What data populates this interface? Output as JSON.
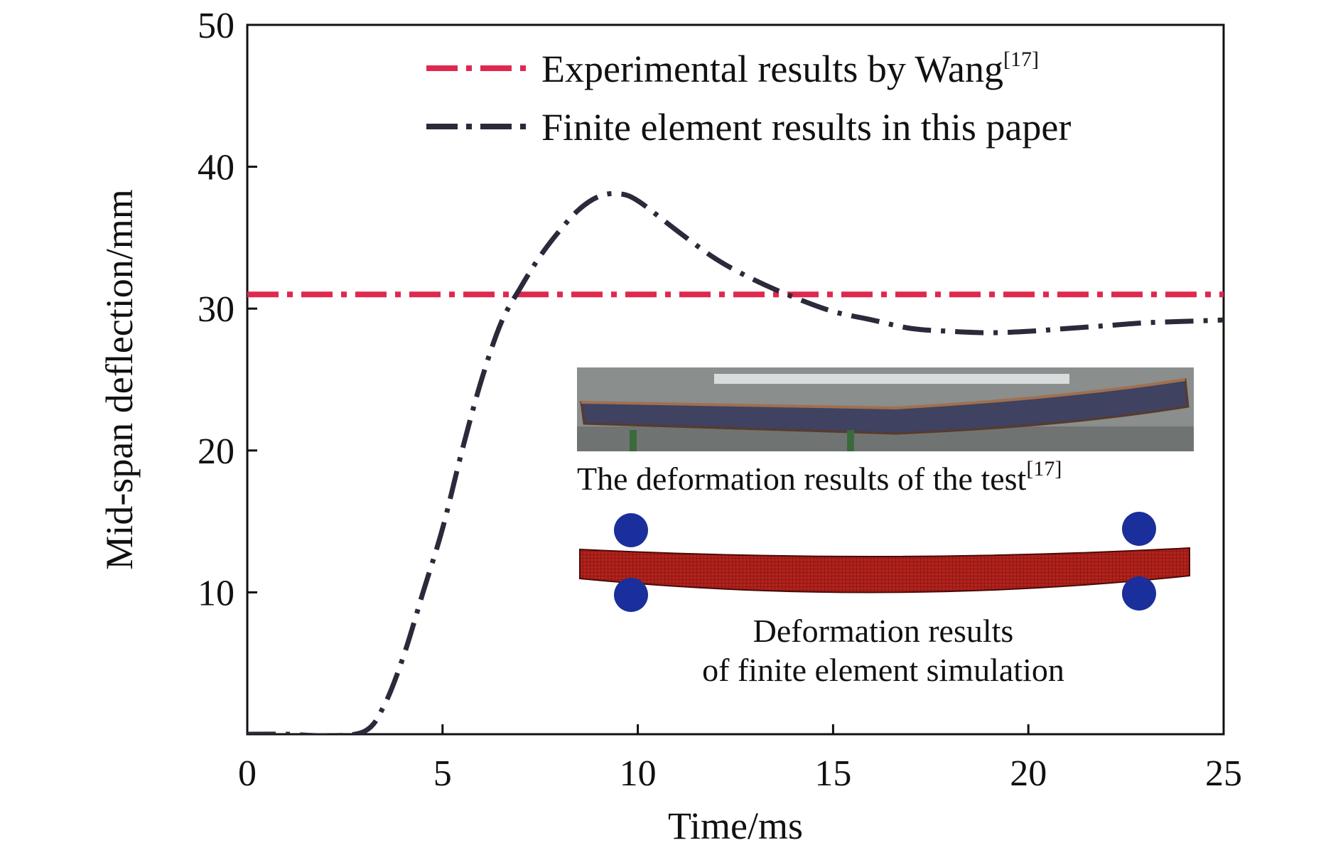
{
  "chart_data": {
    "type": "line",
    "xlabel": "Time/ms",
    "ylabel": "Mid-span deflection/mm",
    "xlim": [
      0,
      25
    ],
    "ylim": [
      0,
      50
    ],
    "x_ticks": [
      "0",
      "5",
      "10",
      "15",
      "20",
      "25"
    ],
    "y_ticks": [
      "10",
      "20",
      "30",
      "40",
      "50"
    ],
    "grid": false,
    "legend_position": "top-right",
    "series": [
      {
        "name": "Experimental results by Wang",
        "name_superscript": "[17]",
        "color": "#e0284f",
        "style": "dash-dot",
        "x": [
          0,
          25
        ],
        "y": [
          31,
          31
        ]
      },
      {
        "name": "Finite element results in this paper",
        "color": "#2a2a3a",
        "style": "dash-dot",
        "x": [
          0,
          1,
          2,
          3,
          3.5,
          4,
          4.5,
          5,
          5.5,
          6,
          6.5,
          7,
          7.5,
          8,
          8.5,
          9,
          9.5,
          10,
          11,
          12,
          13,
          14,
          15,
          16,
          17,
          18,
          19,
          20,
          21,
          22,
          23,
          24,
          25
        ],
        "y": [
          0,
          0,
          -0.1,
          0.2,
          2,
          5.5,
          10,
          14.5,
          20,
          25,
          29,
          31.5,
          33.7,
          35.5,
          37,
          37.9,
          38.1,
          37.6,
          35.5,
          33.5,
          32,
          30.8,
          29.8,
          29.2,
          28.6,
          28.4,
          28.3,
          28.4,
          28.6,
          28.8,
          29,
          29.1,
          29.2
        ]
      }
    ]
  },
  "insets": {
    "test_caption": "The deformation results of the test",
    "test_caption_superscript": "[17]",
    "fe_caption_line1": "Deformation results",
    "fe_caption_line2": "of finite element simulation"
  },
  "colors": {
    "axis": "#111111",
    "beam_fill": "#b3221c",
    "support": "#1a2f9c",
    "photo_background": "#8a8e8c"
  }
}
